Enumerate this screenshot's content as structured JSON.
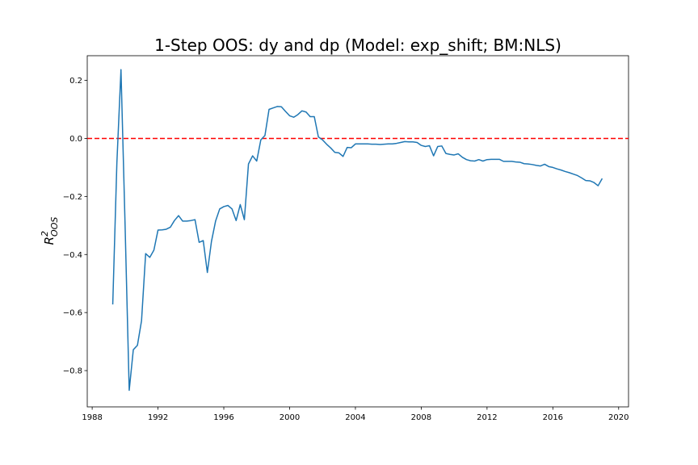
{
  "chart_data": {
    "type": "line",
    "title": "1-Step OOS: dy and dp (Model: exp_shift; BM:NLS)",
    "ylabel_base": "R",
    "ylabel_sup": "2",
    "ylabel_sub": "OOS",
    "xlabel": "",
    "xlim": [
      1987.7,
      2020.6
    ],
    "ylim": [
      -0.925,
      0.285
    ],
    "xticks": [
      1988,
      1992,
      1996,
      2000,
      2004,
      2008,
      2012,
      2016,
      2020
    ],
    "xtick_labels": [
      "1988",
      "1992",
      "1996",
      "2000",
      "2004",
      "2008",
      "2012",
      "2016",
      "2020"
    ],
    "yticks": [
      0.2,
      0.0,
      -0.2,
      -0.4,
      -0.6,
      -0.8
    ],
    "ytick_labels": [
      "0.2",
      "0.0",
      "−0.2",
      "−0.4",
      "−0.6",
      "−0.8"
    ],
    "grid": false,
    "reference_line": {
      "y": 0.0,
      "color": "#ff0000",
      "style": "dashed"
    },
    "series_color": "#1f77b4",
    "series": [
      {
        "x": [
          1989.25,
          1989.5,
          1989.75,
          1990.0,
          1990.25,
          1990.5,
          1990.75,
          1991.0,
          1991.25,
          1991.5,
          1991.75,
          1992.0,
          1992.25,
          1992.5,
          1992.75,
          1993.0,
          1993.25,
          1993.5,
          1993.75,
          1994.0,
          1994.25,
          1994.5,
          1994.75,
          1995.0,
          1995.25,
          1995.5,
          1995.75,
          1996.0,
          1996.25,
          1996.5,
          1996.75,
          1997.0,
          1997.25,
          1997.5,
          1997.75,
          1998.0,
          1998.25,
          1998.5,
          1998.75,
          1999.0,
          1999.25,
          1999.5,
          1999.75,
          2000.0,
          2000.25,
          2000.5,
          2000.75,
          2001.0,
          2001.25,
          2001.5,
          2001.75,
          2002.0,
          2002.25,
          2002.5,
          2002.75,
          2003.0,
          2003.25,
          2003.5,
          2003.75,
          2004.0,
          2004.25,
          2004.5,
          2004.75,
          2005.0,
          2005.25,
          2005.5,
          2005.75,
          2006.0,
          2006.25,
          2006.5,
          2006.75,
          2007.0,
          2007.25,
          2007.5,
          2007.75,
          2008.0,
          2008.25,
          2008.5,
          2008.75,
          2009.0,
          2009.25,
          2009.5,
          2009.75,
          2010.0,
          2010.25,
          2010.5,
          2010.75,
          2011.0,
          2011.25,
          2011.5,
          2011.75,
          2012.0,
          2012.25,
          2012.5,
          2012.75,
          2013.0,
          2013.25,
          2013.5,
          2013.75,
          2014.0,
          2014.25,
          2014.5,
          2014.75,
          2015.0,
          2015.25,
          2015.5,
          2015.75,
          2016.0,
          2016.25,
          2016.5,
          2016.75,
          2017.0,
          2017.25,
          2017.5,
          2017.75,
          2018.0,
          2018.25,
          2018.5,
          2018.75,
          2019.0
        ],
        "y": [
          -0.572,
          -0.085,
          0.237,
          -0.3,
          -0.868,
          -0.728,
          -0.713,
          -0.628,
          -0.397,
          -0.41,
          -0.385,
          -0.316,
          -0.315,
          -0.313,
          -0.306,
          -0.283,
          -0.266,
          -0.285,
          -0.285,
          -0.283,
          -0.28,
          -0.358,
          -0.352,
          -0.462,
          -0.355,
          -0.285,
          -0.243,
          -0.235,
          -0.231,
          -0.243,
          -0.283,
          -0.228,
          -0.28,
          -0.088,
          -0.06,
          -0.078,
          -0.005,
          0.01,
          0.1,
          0.105,
          0.11,
          0.109,
          0.093,
          0.078,
          0.073,
          0.082,
          0.095,
          0.091,
          0.075,
          0.075,
          0.005,
          -0.005,
          -0.02,
          -0.033,
          -0.048,
          -0.05,
          -0.062,
          -0.031,
          -0.032,
          -0.019,
          -0.019,
          -0.019,
          -0.019,
          -0.02,
          -0.02,
          -0.021,
          -0.02,
          -0.019,
          -0.019,
          -0.017,
          -0.014,
          -0.011,
          -0.012,
          -0.012,
          -0.014,
          -0.024,
          -0.028,
          -0.025,
          -0.06,
          -0.028,
          -0.026,
          -0.052,
          -0.055,
          -0.057,
          -0.053,
          -0.065,
          -0.073,
          -0.077,
          -0.078,
          -0.073,
          -0.078,
          -0.073,
          -0.072,
          -0.072,
          -0.072,
          -0.079,
          -0.079,
          -0.079,
          -0.081,
          -0.082,
          -0.087,
          -0.088,
          -0.09,
          -0.093,
          -0.095,
          -0.089,
          -0.097,
          -0.1,
          -0.105,
          -0.109,
          -0.114,
          -0.118,
          -0.123,
          -0.128,
          -0.136,
          -0.145,
          -0.146,
          -0.152,
          -0.163,
          -0.138
        ]
      }
    ]
  }
}
